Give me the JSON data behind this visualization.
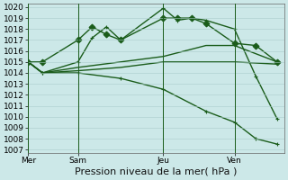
{
  "title": "Pression niveau de la mer( hPa )",
  "bg_color": "#cce8e8",
  "grid_color": "#aacccc",
  "line_color": "#1a5c1a",
  "ylim": [
    1007,
    1020
  ],
  "yticks": [
    1007,
    1008,
    1009,
    1010,
    1011,
    1012,
    1013,
    1014,
    1015,
    1016,
    1017,
    1018,
    1019,
    1020
  ],
  "xlim": [
    0,
    18
  ],
  "xtick_labels": [
    "Mer",
    "Sam",
    "Jeu",
    "Ven"
  ],
  "xtick_positions": [
    0,
    3.5,
    9.5,
    14.5
  ],
  "vlines": [
    0,
    3.5,
    9.5,
    14.5
  ],
  "series": [
    {
      "x": [
        0,
        1,
        3.5,
        4.5,
        5.5,
        6.5,
        9.5,
        10.5,
        11.5,
        12.5,
        14.5,
        16,
        17.5
      ],
      "y": [
        1015,
        1015,
        1017,
        1018.2,
        1017.5,
        1017,
        1019,
        1019,
        1019,
        1018.5,
        1016.7,
        1016.5,
        1015
      ],
      "marker": "D",
      "lw": 1.0
    },
    {
      "x": [
        0,
        1,
        3.5,
        4.5,
        5.5,
        6.5,
        9.5,
        10.5,
        11.5,
        12.5,
        14.5,
        16,
        17.5
      ],
      "y": [
        1015,
        1014,
        1015,
        1017.2,
        1018.2,
        1017.0,
        1019.9,
        1018.8,
        1019.0,
        1018.8,
        1018.0,
        1013.7,
        1009.8
      ],
      "marker": "+",
      "lw": 1.0
    },
    {
      "x": [
        0,
        1,
        3.5,
        6.5,
        9.5,
        12.5,
        14.5,
        17.5
      ],
      "y": [
        1015,
        1014,
        1014.5,
        1015.0,
        1015.5,
        1016.5,
        1016.5,
        1015.0
      ],
      "marker": null,
      "lw": 1.0
    },
    {
      "x": [
        0,
        1,
        3.5,
        6.5,
        9.5,
        12.5,
        14.5,
        17.5
      ],
      "y": [
        1015,
        1014,
        1014.2,
        1014.5,
        1015.0,
        1015.0,
        1015.0,
        1014.8
      ],
      "marker": null,
      "lw": 1.0
    },
    {
      "x": [
        0,
        1,
        3.5,
        6.5,
        9.5,
        12.5,
        14.5,
        16,
        17.5
      ],
      "y": [
        1015,
        1014,
        1014,
        1013.5,
        1012.5,
        1010.5,
        1009.5,
        1008,
        1007.5
      ],
      "marker": "+",
      "lw": 1.0
    }
  ],
  "title_fontsize": 8,
  "tick_fontsize": 6.5
}
